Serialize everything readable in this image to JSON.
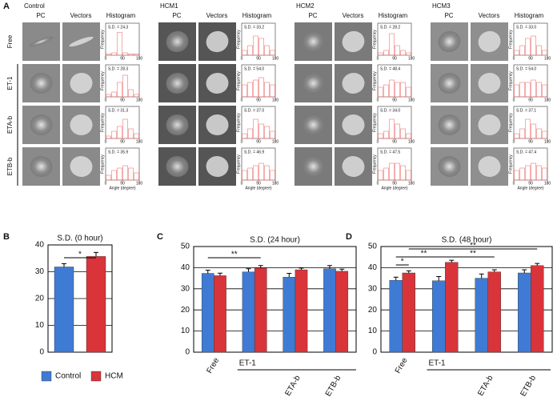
{
  "panel_labels": [
    "A",
    "B",
    "C",
    "D"
  ],
  "panel_a": {
    "columns": [
      "PC",
      "Vectors",
      "Histogram"
    ],
    "rows": [
      "Free",
      "ET-1",
      "ETA-b",
      "ETB-b"
    ],
    "hist_ylabel": "Frequency",
    "hist_xlabel": "Angle (degree)",
    "hist_xlim": [
      0,
      180
    ],
    "hist_xticks": [
      0,
      90,
      180
    ],
    "groups": [
      {
        "title": "Control",
        "rows": [
          {
            "sd_label": "S.D. = 24.3",
            "bars": [
              0.05,
              0.1,
              0.95,
              0.1,
              0.05,
              0.05
            ]
          },
          {
            "sd_label": "S.D. = 28.3",
            "bars": [
              0.1,
              0.2,
              0.6,
              0.9,
              0.3,
              0.1
            ]
          },
          {
            "sd_label": "S.D. = 31.3",
            "bars": [
              0.1,
              0.3,
              0.5,
              0.8,
              0.4,
              0.2
            ]
          },
          {
            "sd_label": "S.D. = 35.9",
            "bars": [
              0.2,
              0.4,
              0.5,
              0.6,
              0.5,
              0.3
            ]
          }
        ]
      },
      {
        "title": "HCM1",
        "rows": [
          {
            "sd_label": "S.D. = 33.2",
            "bars": [
              0.2,
              0.4,
              0.8,
              0.7,
              0.4,
              0.2
            ]
          },
          {
            "sd_label": "S.D. = 54.0",
            "bars": [
              0.5,
              0.6,
              0.7,
              0.8,
              0.6,
              0.5
            ]
          },
          {
            "sd_label": "S.D. = 37.0",
            "bars": [
              0.2,
              0.4,
              0.8,
              0.6,
              0.5,
              0.3
            ]
          },
          {
            "sd_label": "S.D. = 46.9",
            "bars": [
              0.4,
              0.5,
              0.6,
              0.7,
              0.6,
              0.4
            ]
          }
        ]
      },
      {
        "title": "HCM2",
        "rows": [
          {
            "sd_label": "S.D. = 28.2",
            "bars": [
              0.1,
              0.2,
              0.9,
              0.4,
              0.2,
              0.1
            ]
          },
          {
            "sd_label": "S.D. = 48.4",
            "bars": [
              0.4,
              0.5,
              0.7,
              0.6,
              0.6,
              0.4
            ]
          },
          {
            "sd_label": "S.D. = 34.0",
            "bars": [
              0.2,
              0.3,
              0.8,
              0.6,
              0.4,
              0.2
            ]
          },
          {
            "sd_label": "S.D. = 47.5",
            "bars": [
              0.4,
              0.5,
              0.7,
              0.7,
              0.6,
              0.4
            ]
          }
        ]
      },
      {
        "title": "HCM3",
        "rows": [
          {
            "sd_label": "S.D. = 33.0",
            "bars": [
              0.2,
              0.4,
              0.7,
              0.8,
              0.4,
              0.2
            ]
          },
          {
            "sd_label": "S.D. = 54.0",
            "bars": [
              0.5,
              0.6,
              0.6,
              0.7,
              0.6,
              0.5
            ]
          },
          {
            "sd_label": "S.D. = 37.1",
            "bars": [
              0.2,
              0.4,
              0.8,
              0.6,
              0.4,
              0.3
            ]
          },
          {
            "sd_label": "S.D. = 47.4",
            "bars": [
              0.4,
              0.5,
              0.6,
              0.7,
              0.6,
              0.5
            ]
          }
        ]
      }
    ]
  },
  "chart_data": [
    {
      "type": "bar",
      "title": "S.D. (0 hour)",
      "categories": [
        null
      ],
      "series": [
        {
          "name": "Control",
          "color": "#3f7bd4",
          "values": [
            31.8
          ],
          "errors": [
            1.2
          ]
        },
        {
          "name": "HCM",
          "color": "#d8343a",
          "values": [
            35.7
          ],
          "errors": [
            1.5
          ]
        }
      ],
      "ylim": [
        0,
        40
      ],
      "yticks": [
        0,
        10,
        20,
        30,
        40
      ],
      "grid": true,
      "significance": [
        "*"
      ]
    },
    {
      "type": "bar",
      "title": "S.D. (24 hour)",
      "categories": [
        "Free",
        null,
        "ETA-b",
        "ETB-b"
      ],
      "group_label": "ET-1",
      "series": [
        {
          "name": "Control",
          "color": "#3f7bd4",
          "values": [
            37.3,
            38.0,
            35.5,
            39.5
          ],
          "errors": [
            1.5,
            1.5,
            1.8,
            1.5
          ]
        },
        {
          "name": "HCM",
          "color": "#d8343a",
          "values": [
            36.2,
            39.8,
            39.0,
            38.3
          ],
          "errors": [
            1.2,
            1.2,
            0.8,
            1.0
          ]
        }
      ],
      "ylim": [
        0,
        50
      ],
      "yticks": [
        0,
        10,
        20,
        30,
        40,
        50
      ],
      "grid": true,
      "significance": [
        "**"
      ]
    },
    {
      "type": "bar",
      "title": "S.D. (48 hour)",
      "categories": [
        "Free",
        null,
        "ETA-b",
        "ETB-b"
      ],
      "group_label": "ET-1",
      "series": [
        {
          "name": "Control",
          "color": "#3f7bd4",
          "values": [
            34.0,
            33.8,
            35.0,
            37.5
          ],
          "errors": [
            1.5,
            2.0,
            2.0,
            1.5
          ]
        },
        {
          "name": "HCM",
          "color": "#d8343a",
          "values": [
            37.5,
            42.5,
            38.0,
            41.0
          ],
          "errors": [
            1.0,
            1.0,
            1.0,
            1.0
          ]
        }
      ],
      "ylim": [
        0,
        50
      ],
      "yticks": [
        0,
        10,
        20,
        30,
        40,
        50
      ],
      "grid": true,
      "significance": [
        "*",
        "**",
        "**",
        "**"
      ]
    }
  ]
}
